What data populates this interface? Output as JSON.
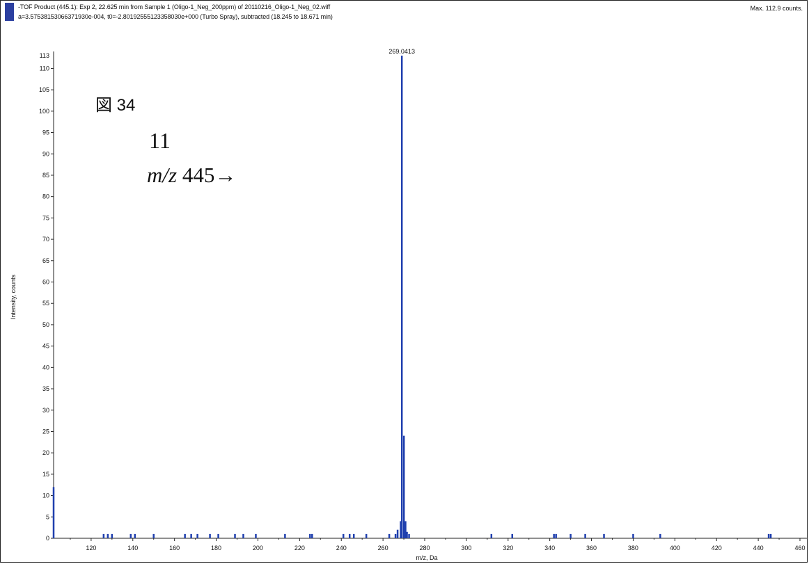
{
  "header": {
    "line1": "-TOF Product (445.1): Exp 2, 22.625 min from Sample 1 (Oligo-1_Neg_200ppm) of 20110216_Oligo-1_Neg_02.wiff",
    "line2": "a=3.57538153066371930e-004, t0=-2.80192555123358030e+000 (Turbo Spray), subtracted (18.245 to 18.671 min)",
    "max_counts": "Max. 112.9 counts.",
    "accent_color": "#2b3fa0"
  },
  "annotation": {
    "figure_label": "図 34",
    "compound_number": "11",
    "mz_prefix": "m/z",
    "mz_value": " 445→"
  },
  "chart_data": {
    "type": "bar",
    "title": "",
    "xlabel": "m/z, Da",
    "ylabel": "Intensity, counts",
    "xlim": [
      102,
      460
    ],
    "ylim": [
      0,
      113
    ],
    "x_ticks": [
      120,
      140,
      160,
      180,
      200,
      220,
      240,
      260,
      280,
      300,
      320,
      340,
      360,
      380,
      400,
      420,
      440,
      460
    ],
    "y_ticks": [
      0,
      5,
      10,
      15,
      20,
      25,
      30,
      35,
      40,
      45,
      50,
      55,
      60,
      65,
      70,
      75,
      80,
      85,
      90,
      95,
      100,
      105,
      110
    ],
    "y_max_label": "113",
    "bar_color": "#1f3fae",
    "peaks": [
      {
        "x": 102,
        "y": 12
      },
      {
        "x": 126,
        "y": 1
      },
      {
        "x": 128,
        "y": 1
      },
      {
        "x": 130,
        "y": 1
      },
      {
        "x": 139,
        "y": 1
      },
      {
        "x": 141,
        "y": 1
      },
      {
        "x": 150,
        "y": 1
      },
      {
        "x": 165,
        "y": 1
      },
      {
        "x": 168,
        "y": 1
      },
      {
        "x": 171,
        "y": 1
      },
      {
        "x": 177,
        "y": 1
      },
      {
        "x": 181,
        "y": 1
      },
      {
        "x": 189,
        "y": 1
      },
      {
        "x": 193,
        "y": 1
      },
      {
        "x": 199,
        "y": 1
      },
      {
        "x": 213,
        "y": 1
      },
      {
        "x": 225,
        "y": 1
      },
      {
        "x": 226,
        "y": 1
      },
      {
        "x": 241,
        "y": 1
      },
      {
        "x": 244,
        "y": 1
      },
      {
        "x": 246,
        "y": 1
      },
      {
        "x": 252,
        "y": 1
      },
      {
        "x": 263,
        "y": 1
      },
      {
        "x": 266,
        "y": 1
      },
      {
        "x": 267,
        "y": 2
      },
      {
        "x": 268.5,
        "y": 4
      },
      {
        "x": 269.04,
        "y": 113
      },
      {
        "x": 270.04,
        "y": 24
      },
      {
        "x": 270.8,
        "y": 4
      },
      {
        "x": 271.5,
        "y": 1.5
      },
      {
        "x": 272.5,
        "y": 1
      },
      {
        "x": 312,
        "y": 1
      },
      {
        "x": 322,
        "y": 1
      },
      {
        "x": 342,
        "y": 1
      },
      {
        "x": 343,
        "y": 1
      },
      {
        "x": 350,
        "y": 1
      },
      {
        "x": 357,
        "y": 1
      },
      {
        "x": 366,
        "y": 1
      },
      {
        "x": 380,
        "y": 1
      },
      {
        "x": 393,
        "y": 1
      },
      {
        "x": 445,
        "y": 1
      },
      {
        "x": 446,
        "y": 1
      }
    ],
    "peak_labels": [
      {
        "x": 269.04,
        "y": 113,
        "text": "269.0413"
      }
    ]
  }
}
